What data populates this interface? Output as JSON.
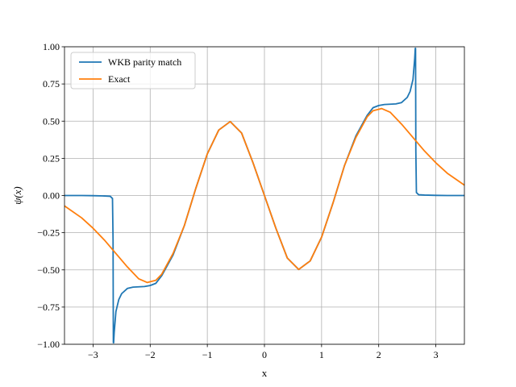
{
  "chart_data": {
    "type": "line",
    "title": "",
    "xlabel": "x",
    "ylabel": "ψ(x)",
    "xlim": [
      -3.5,
      3.5
    ],
    "ylim": [
      -1.0,
      1.0
    ],
    "grid": true,
    "legend_position": "top-left",
    "x_ticks": [
      -3,
      -2,
      -1,
      0,
      1,
      2,
      3
    ],
    "x_tick_labels": [
      "−3",
      "−2",
      "−1",
      "0",
      "1",
      "2",
      "3"
    ],
    "y_ticks": [
      -1.0,
      -0.75,
      -0.5,
      -0.25,
      0.0,
      0.25,
      0.5,
      0.75,
      1.0
    ],
    "y_tick_labels": [
      "−1.00",
      "−0.75",
      "−0.50",
      "−0.25",
      "0.00",
      "0.25",
      "0.50",
      "0.75",
      "1.00"
    ],
    "series": [
      {
        "name": "WKB parity match",
        "color": "#1f77b4",
        "x": [
          -3.5,
          -3.2,
          -3.0,
          -2.8,
          -2.7,
          -2.66,
          -2.65,
          -2.645,
          -2.64,
          -2.63,
          -2.6,
          -2.55,
          -2.5,
          -2.4,
          -2.3,
          -2.2,
          -2.1,
          -2.0,
          -1.9,
          -1.8,
          -1.6,
          -1.4,
          -1.2,
          -1.0,
          -0.8,
          -0.6,
          -0.4,
          -0.2,
          0.0,
          0.2,
          0.4,
          0.6,
          0.8,
          1.0,
          1.2,
          1.4,
          1.6,
          1.8,
          1.9,
          2.0,
          2.1,
          2.2,
          2.3,
          2.4,
          2.5,
          2.55,
          2.6,
          2.63,
          2.64,
          2.645,
          2.65,
          2.66,
          2.7,
          2.8,
          3.0,
          3.2,
          3.5
        ],
        "y": [
          0.0,
          0.0,
          -0.001,
          -0.003,
          -0.005,
          -0.02,
          -0.3,
          -0.99,
          -0.99,
          -0.92,
          -0.78,
          -0.7,
          -0.66,
          -0.625,
          -0.616,
          -0.614,
          -0.612,
          -0.605,
          -0.59,
          -0.54,
          -0.4,
          -0.2,
          0.05,
          0.28,
          0.44,
          0.497,
          0.42,
          0.22,
          0.0,
          -0.22,
          -0.42,
          -0.497,
          -0.44,
          -0.28,
          -0.05,
          0.2,
          0.4,
          0.54,
          0.59,
          0.605,
          0.612,
          0.614,
          0.616,
          0.625,
          0.66,
          0.7,
          0.78,
          0.92,
          0.99,
          0.99,
          0.3,
          0.02,
          0.005,
          0.003,
          0.001,
          0.0,
          0.0
        ]
      },
      {
        "name": "Exact",
        "color": "#ff7f0e",
        "x": [
          -3.5,
          -3.2,
          -3.0,
          -2.8,
          -2.6,
          -2.4,
          -2.2,
          -2.05,
          -1.9,
          -1.8,
          -1.6,
          -1.4,
          -1.2,
          -1.0,
          -0.8,
          -0.6,
          -0.4,
          -0.2,
          0.0,
          0.2,
          0.4,
          0.6,
          0.8,
          1.0,
          1.2,
          1.4,
          1.6,
          1.8,
          1.9,
          2.05,
          2.2,
          2.4,
          2.6,
          2.8,
          3.0,
          3.2,
          3.5
        ],
        "y": [
          -0.07,
          -0.15,
          -0.22,
          -0.3,
          -0.39,
          -0.48,
          -0.56,
          -0.585,
          -0.57,
          -0.53,
          -0.39,
          -0.2,
          0.05,
          0.28,
          0.44,
          0.497,
          0.42,
          0.22,
          0.0,
          -0.22,
          -0.42,
          -0.497,
          -0.44,
          -0.28,
          -0.05,
          0.2,
          0.39,
          0.53,
          0.57,
          0.585,
          0.56,
          0.48,
          0.39,
          0.3,
          0.22,
          0.15,
          0.07
        ]
      }
    ]
  }
}
